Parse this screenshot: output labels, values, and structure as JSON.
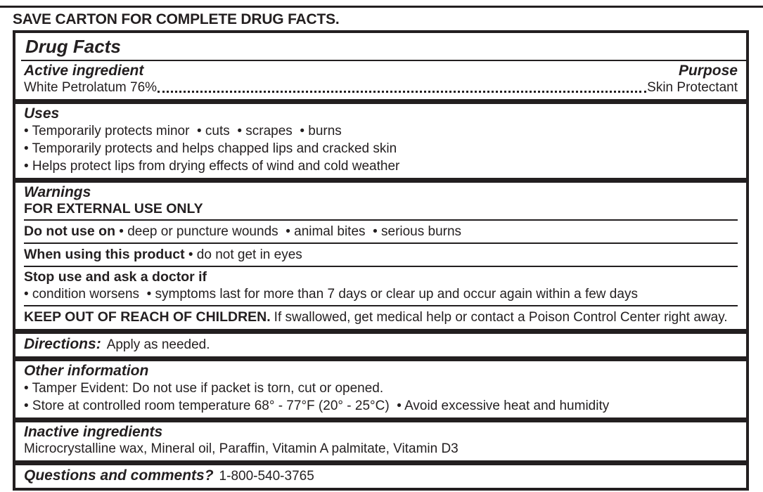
{
  "page": {
    "save_carton_heading": "SAVE CARTON FOR COMPLETE DRUG FACTS.",
    "ink_color": "#231f20",
    "bottom_rule_color": "#b4b6b8"
  },
  "drug_facts": {
    "title": "Drug Facts",
    "active_ingredient": {
      "heading": "Active ingredient",
      "purpose_heading": "Purpose",
      "ingredient": "White Petrolatum 76%",
      "purpose": "Skin Protectant"
    },
    "uses": {
      "heading": "Uses",
      "bullets": [
        "• Temporarily protects minor  • cuts  • scrapes  • burns",
        "• Temporarily protects and helps chapped lips and cracked skin",
        "• Helps protect lips from drying effects of wind and cold weather"
      ]
    },
    "warnings": {
      "heading": "Warnings",
      "external_use": "FOR EXTERNAL USE ONLY",
      "do_not_use": {
        "label": "Do not use on",
        "text": " • deep or puncture wounds  • animal bites  • serious burns"
      },
      "when_using": {
        "label": "When using this product",
        "text": " • do not get in eyes"
      },
      "stop_use": {
        "label": "Stop use and ask a doctor if",
        "text": "• condition worsens  • symptoms last for more than 7 days or clear up and occur again within a few days"
      },
      "keep_out": {
        "label": "KEEP OUT OF REACH OF CHILDREN.",
        "text": "If swallowed, get medical help or contact a Poison Control Center right away."
      }
    },
    "directions": {
      "label": "Directions:",
      "text": "Apply as needed."
    },
    "other_information": {
      "heading": "Other information",
      "bullets": [
        "• Tamper Evident: Do not use if packet is torn, cut or opened.",
        "• Store at controlled room temperature 68° - 77°F (20° - 25°C)  • Avoid excessive heat and humidity"
      ]
    },
    "inactive_ingredients": {
      "heading": "Inactive ingredients",
      "text": "Microcrystalline wax, Mineral oil, Paraffin, Vitamin A palmitate, Vitamin D3"
    },
    "questions": {
      "label": "Questions and comments?",
      "text": "1-800-540-3765"
    }
  }
}
